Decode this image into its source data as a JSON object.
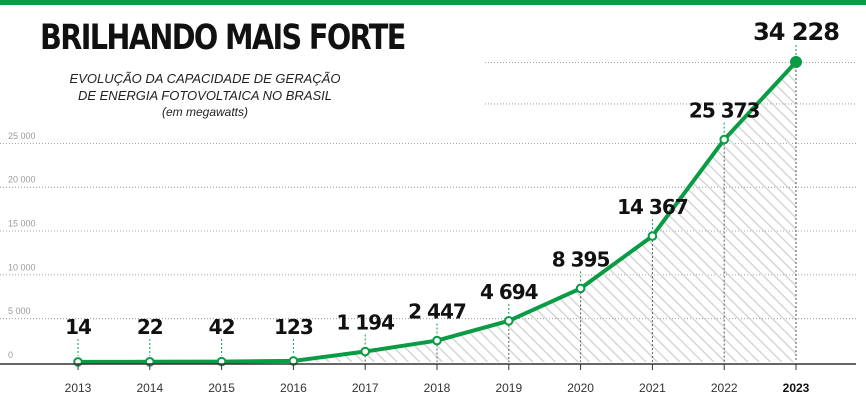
{
  "header": {
    "title": "BRILHANDO MAIS FORTE",
    "subtitle_line1": "EVOLUÇÃO DA CAPACIDADE DE GERAÇÃO",
    "subtitle_line2": "DE ENERGIA FOTOVOLTAICA NO BRASIL",
    "unit": "(em megawatts)"
  },
  "colors": {
    "accent": "#0a9b45",
    "marker_fill": "#ffffff",
    "grid": "#888888",
    "hatch": "#d6d6d6"
  },
  "chart_data": {
    "type": "area",
    "title": "BRILHANDO MAIS FORTE",
    "subtitle": "EVOLUÇÃO DA CAPACIDADE DE GERAÇÃO DE ENERGIA FOTOVOLTAICA NO BRASIL",
    "ylabel": "(em megawatts)",
    "xlabel": "",
    "x": [
      "2013",
      "2014",
      "2015",
      "2016",
      "2017",
      "2018",
      "2019",
      "2020",
      "2021",
      "2022",
      "2023"
    ],
    "values": [
      14,
      22,
      42,
      123,
      1194,
      2447,
      4694,
      8395,
      14367,
      25373,
      34228
    ],
    "value_labels": [
      "14",
      "22",
      "42",
      "123",
      "1 194",
      "2 447",
      "4 694",
      "8 395",
      "14 367",
      "25 373",
      "34 228"
    ],
    "ylim": [
      0,
      34228
    ],
    "yticks": [
      0,
      5000,
      10000,
      15000,
      20000,
      25000
    ],
    "ytick_labels": [
      "0",
      "5 000",
      "10 000",
      "15 000",
      "20 000",
      "25 000"
    ],
    "grid": true,
    "legend": "none"
  }
}
